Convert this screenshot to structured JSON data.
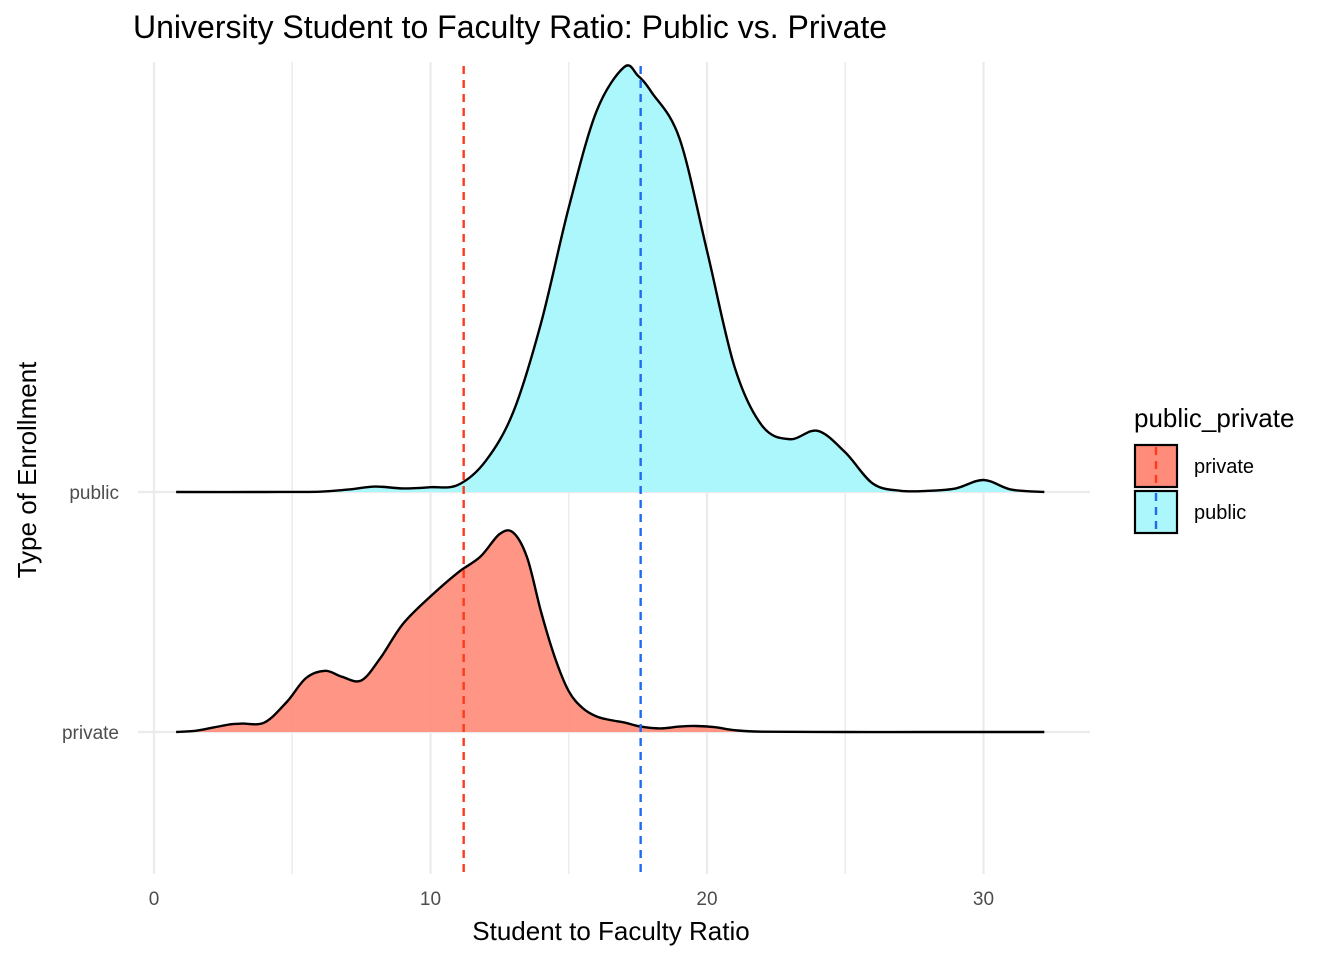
{
  "chart_data": {
    "type": "density_ridges",
    "title": "University Student to Faculty Ratio: Public vs. Private",
    "xlabel": "Student to Faculty Ratio",
    "ylabel": "Type of Enrollment",
    "xlim": [
      0,
      33
    ],
    "x_ticks": [
      0,
      10,
      20,
      30
    ],
    "categories": [
      "private",
      "public"
    ],
    "grid": true,
    "legend": {
      "title": "public_private",
      "position": "right",
      "entries": [
        "private",
        "public"
      ]
    },
    "series": [
      {
        "name": "private",
        "color": "#FF8C7A",
        "mean_line": 11.2,
        "mean_line_color": "#FF3A1A",
        "x": [
          0.8,
          1.5,
          2.2,
          2.8,
          3.2,
          4.0,
          4.8,
          5.5,
          6.2,
          6.8,
          7.5,
          8.2,
          9.0,
          10.0,
          11.0,
          11.8,
          12.5,
          13.0,
          13.5,
          14.0,
          14.5,
          15.0,
          15.5,
          16.0,
          16.5,
          17.0,
          17.6,
          18.3,
          19.0,
          19.6,
          20.3,
          21.0,
          22.0,
          25.0,
          28.0,
          32.2
        ],
        "density": [
          0.0,
          0.01,
          0.04,
          0.065,
          0.07,
          0.08,
          0.25,
          0.45,
          0.51,
          0.46,
          0.43,
          0.62,
          0.9,
          1.13,
          1.33,
          1.46,
          1.65,
          1.66,
          1.45,
          1.0,
          0.62,
          0.34,
          0.2,
          0.13,
          0.1,
          0.08,
          0.045,
          0.03,
          0.045,
          0.05,
          0.04,
          0.015,
          0.003,
          0.0,
          0.0,
          0.0
        ]
      },
      {
        "name": "public",
        "color": "#ABF7FB",
        "mean_line": 17.6,
        "mean_line_color": "#1F6AF0",
        "x": [
          0.8,
          4.0,
          6.0,
          7.0,
          8.0,
          9.0,
          10.0,
          11.0,
          12.0,
          13.0,
          14.0,
          15.0,
          16.0,
          17.0,
          17.5,
          18.0,
          19.0,
          20.0,
          21.0,
          22.0,
          23.0,
          24.0,
          25.0,
          26.0,
          27.0,
          28.0,
          29.0,
          30.0,
          31.0,
          32.2
        ],
        "density": [
          0.0,
          0.0,
          0.003,
          0.02,
          0.045,
          0.03,
          0.04,
          0.06,
          0.26,
          0.67,
          1.41,
          2.37,
          3.17,
          3.54,
          3.47,
          3.33,
          2.95,
          2.01,
          1.04,
          0.55,
          0.44,
          0.51,
          0.33,
          0.07,
          0.01,
          0.01,
          0.03,
          0.1,
          0.02,
          0.0
        ]
      }
    ]
  }
}
